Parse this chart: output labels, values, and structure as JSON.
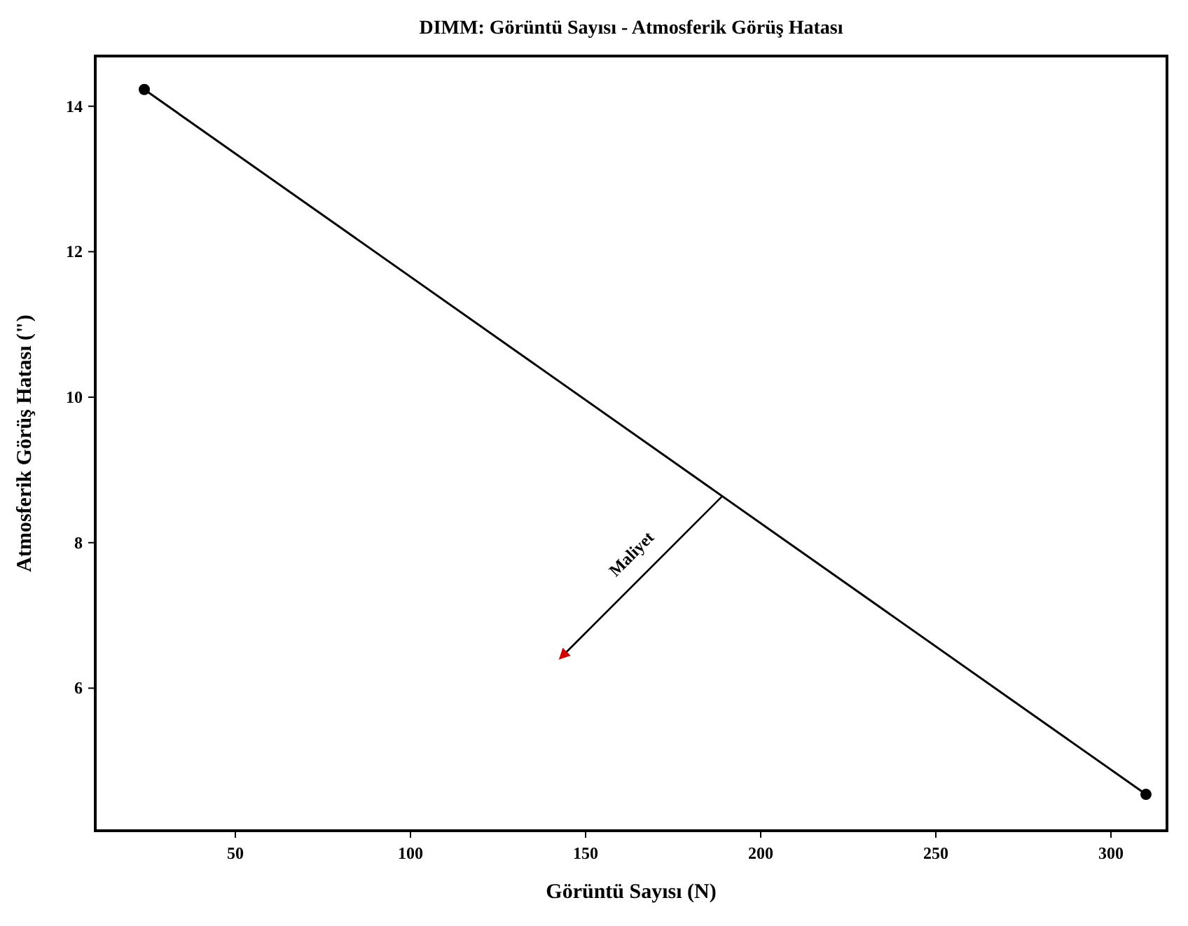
{
  "chart_data": {
    "type": "line",
    "title": "DIMM: Görüntü Sayısı - Atmosferik Görüş Hatası",
    "xlabel": "Görüntü Sayısı (N)",
    "ylabel": "Atmosferik Görüş Hatası (\")",
    "x": [
      24,
      310
    ],
    "series": [
      {
        "color": "#000000",
        "values": [
          14.23,
          4.54
        ]
      }
    ],
    "marker": "circle",
    "line_style": "solid",
    "grid": false,
    "xlim": [
      10,
      316
    ],
    "xticks": [
      50,
      100,
      150,
      200,
      250,
      300
    ],
    "ylim": [
      4.04,
      14.69
    ],
    "yticks": [
      6,
      8,
      10,
      12,
      14
    ],
    "annotations": [
      "Maliyet"
    ]
  }
}
